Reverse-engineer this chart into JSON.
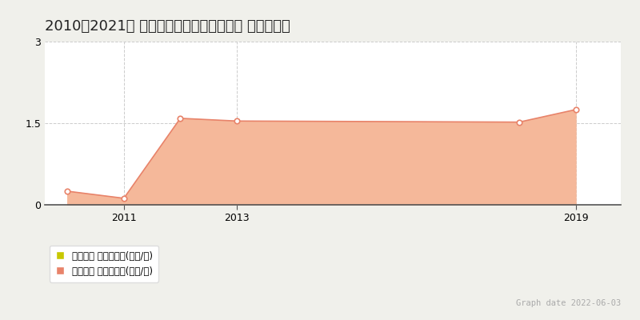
{
  "title": "2010～2021年 樺戸郡月形町（大字なし） の地価推移",
  "background_color": "#f0f0eb",
  "plot_bg_color": "#ffffff",
  "trade_x": [
    2010,
    2011,
    2012,
    2013,
    2018,
    2019
  ],
  "trade_y": [
    0.25,
    0.12,
    1.59,
    1.54,
    1.52,
    1.75
  ],
  "trade_line_color": "#e8836a",
  "trade_fill_color": "#f5b89a",
  "marker_facecolor": "#ffffff",
  "marker_edgecolor": "#e8836a",
  "ylim": [
    0,
    3
  ],
  "yticks": [
    0,
    1.5,
    3
  ],
  "xticks": [
    2011,
    2013,
    2019
  ],
  "xmin": 2009.6,
  "xmax": 2019.8,
  "grid_color": "#cccccc",
  "legend_label_kouji": "地価公示 平均坪単価(万円/坪)",
  "legend_label_trade": "取引価格 平均坪単価(万円/坪)",
  "legend_color_kouji": "#c8c800",
  "legend_color_trade": "#e8836a",
  "graph_date_text": "Graph date 2022-06-03",
  "graph_date_color": "#aaaaaa",
  "title_fontsize": 13,
  "axis_fontsize": 9,
  "legend_fontsize": 8.5,
  "graph_date_fontsize": 7.5
}
